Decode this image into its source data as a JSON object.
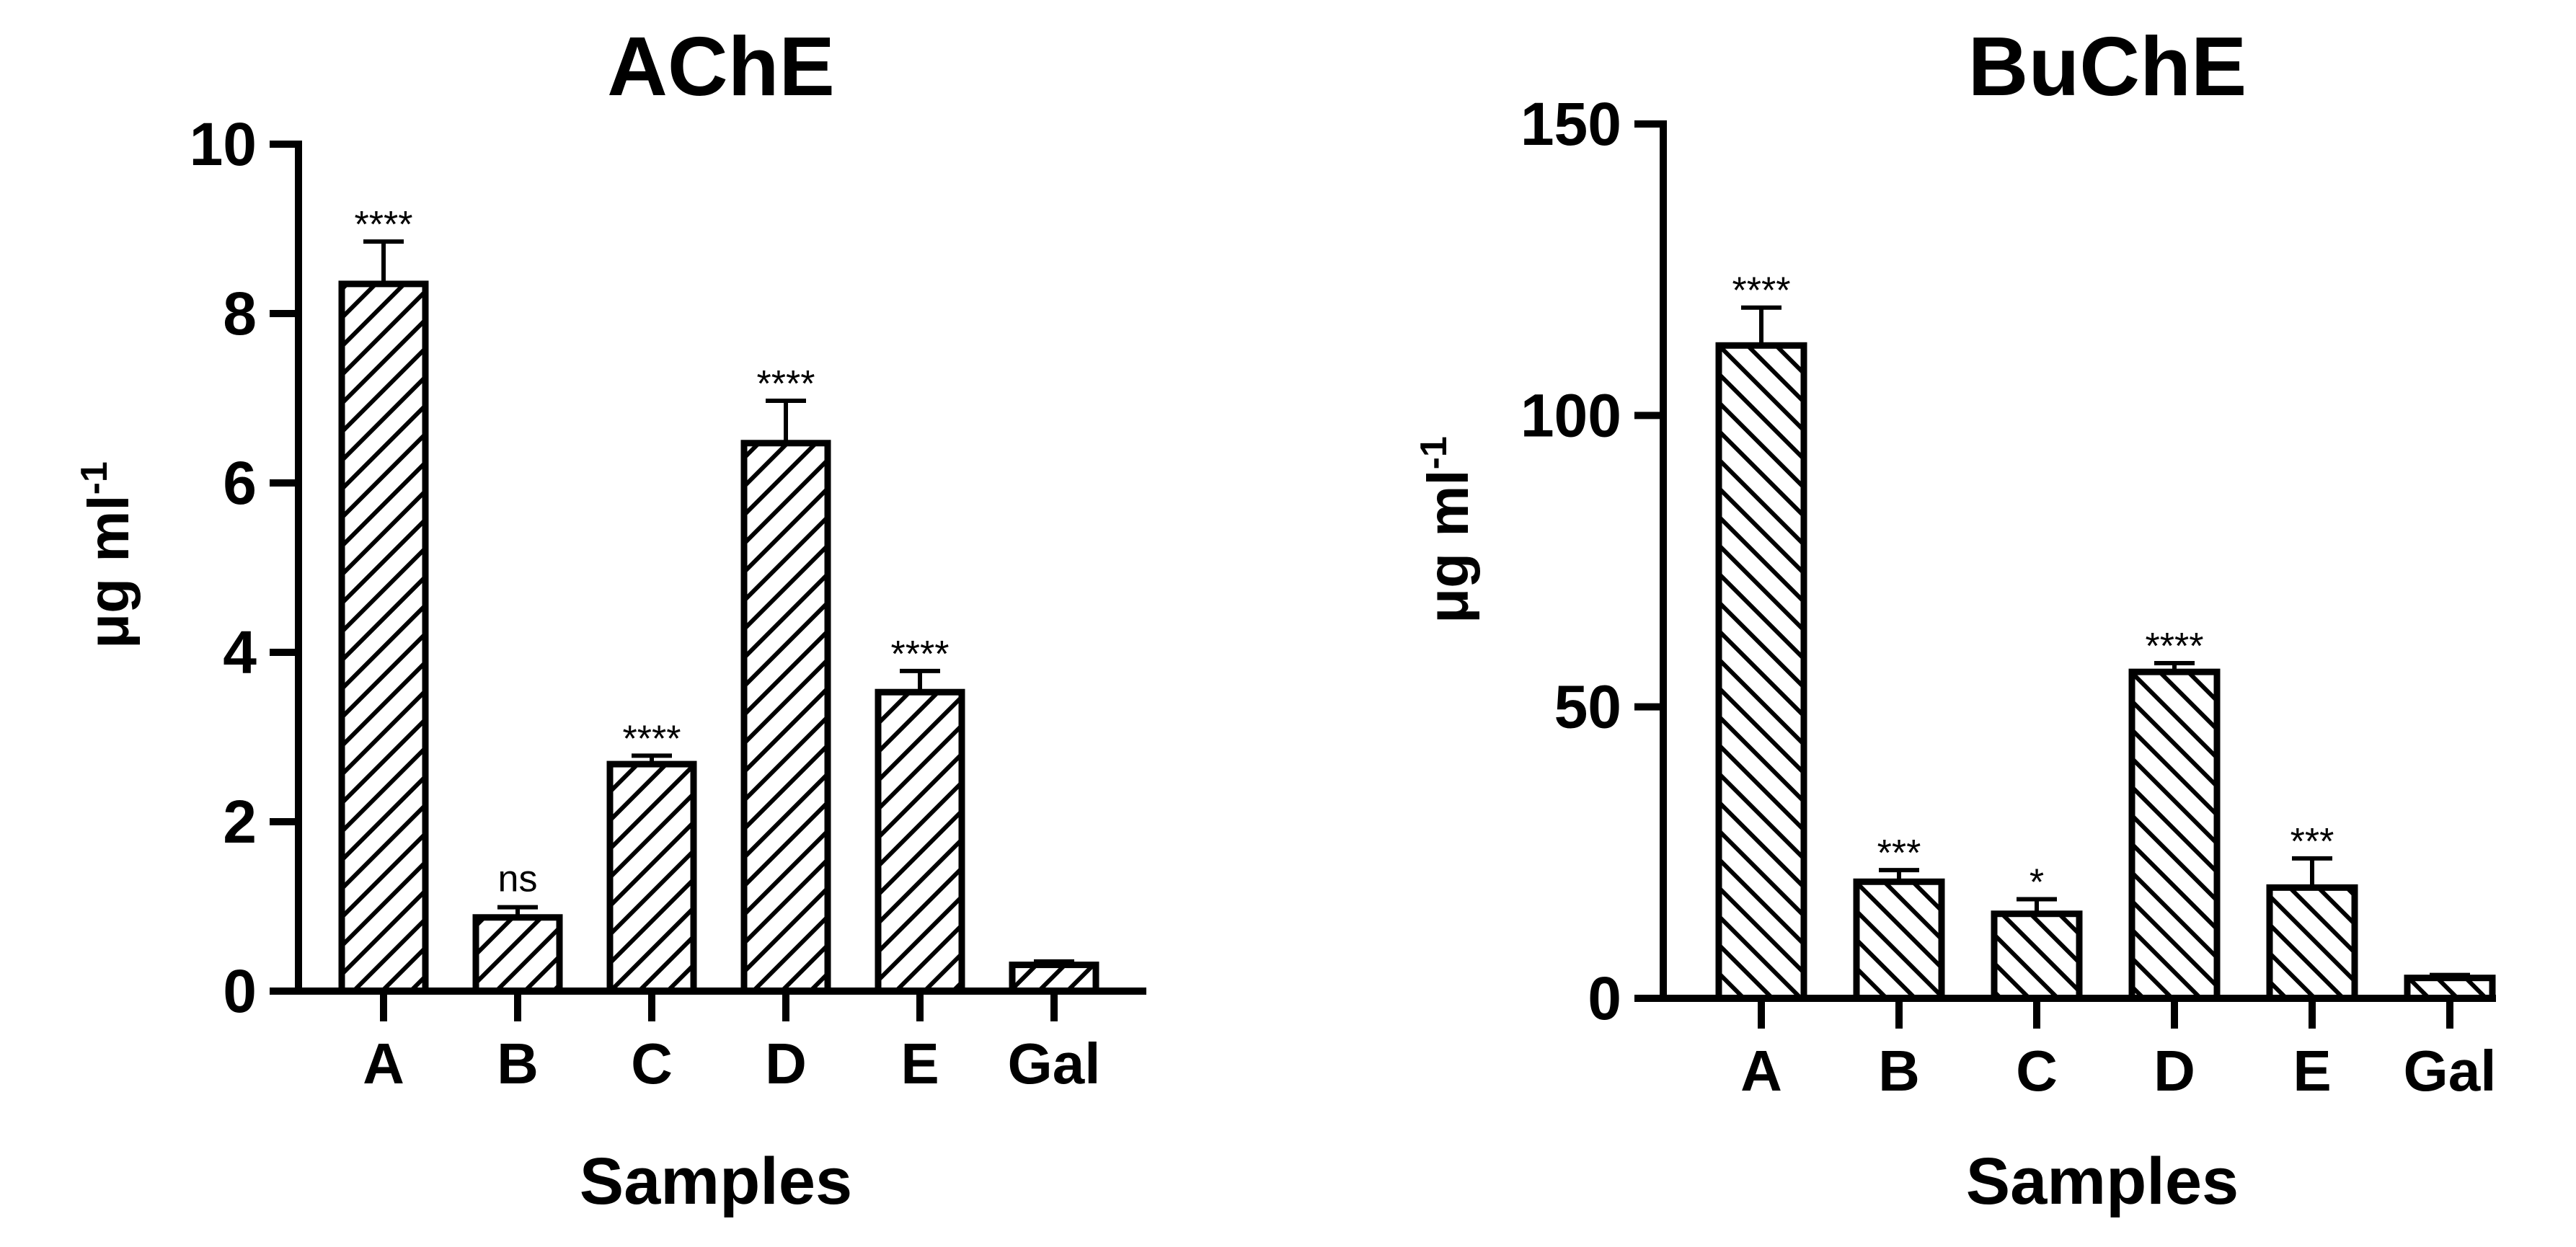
{
  "chart_data": [
    {
      "type": "bar",
      "title": "AChE",
      "xlabel": "Samples",
      "ylabel": "μg ml",
      "ylabel_superscript": "-1",
      "categories": [
        "A",
        "B",
        "C",
        "D",
        "E",
        "Gal"
      ],
      "values": [
        8.35,
        0.87,
        2.68,
        6.47,
        3.53,
        0.31
      ],
      "errors": [
        0.5,
        0.12,
        0.1,
        0.5,
        0.25,
        0.04
      ],
      "annotations": [
        "****",
        "ns",
        "****",
        "****",
        "****",
        ""
      ],
      "ylim": [
        0,
        10
      ],
      "yticks": [
        0,
        2,
        4,
        6,
        8,
        10
      ],
      "ytick_labels": [
        "0",
        "2",
        "4",
        "6",
        "8",
        "10"
      ],
      "pattern": "diagonal-hatch-forward",
      "grid": false,
      "legend": "none"
    },
    {
      "type": "bar",
      "title": "BuChE",
      "xlabel": "Samples",
      "ylabel": "μg ml",
      "ylabel_superscript": "-1",
      "categories": [
        "A",
        "B",
        "C",
        "D",
        "E",
        "Gal"
      ],
      "values": [
        112,
        20,
        14.5,
        56,
        19,
        3.5
      ],
      "errors": [
        6.5,
        2,
        2.5,
        1.5,
        5,
        0.5
      ],
      "annotations": [
        "****",
        "***",
        "*",
        "****",
        "***",
        ""
      ],
      "ylim": [
        0,
        150
      ],
      "yticks": [
        0,
        50,
        100,
        150
      ],
      "ytick_labels": [
        "0",
        "50",
        "100",
        "150"
      ],
      "pattern": "diagonal-hatch-backward",
      "grid": false,
      "legend": "none"
    }
  ]
}
